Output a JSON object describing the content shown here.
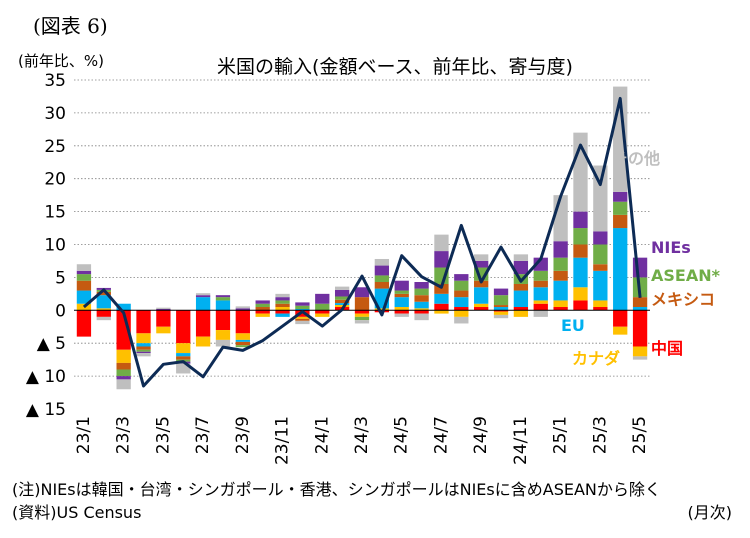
{
  "figure_label": "(図表 6)",
  "unit_label": "(前年比、%)",
  "footer": {
    "note": "(注)NIEsは韓国・台湾・シンガポール・香港、シンガポールはNIEsに含めASEANから除く",
    "source": "(資料)US Census",
    "x_unit": "(月次)"
  },
  "colors": {
    "china": "#ff0000",
    "canada": "#ffc000",
    "eu": "#00b0f0",
    "mexico": "#c55a11",
    "asean": "#70ad47",
    "nies": "#7030a0",
    "other": "#bfbfbf",
    "total_line": "#0d2b55"
  },
  "chart_data": {
    "type": "bar",
    "title": "米国の輸入(金額ベース、前年比、寄与度)",
    "stacked": true,
    "ylim": [
      -15,
      35
    ],
    "yticks": [
      -15,
      -10,
      -5,
      0,
      5,
      10,
      15,
      20,
      25,
      30,
      35
    ],
    "ytick_labels": [
      "▲ 15",
      "▲ 10",
      "▲ 5",
      "0",
      "5",
      "10",
      "15",
      "20",
      "25",
      "30",
      "35"
    ],
    "grid": true,
    "categories": [
      "23/1",
      "23/2",
      "23/3",
      "23/4",
      "23/5",
      "23/6",
      "23/7",
      "23/8",
      "23/9",
      "23/10",
      "23/11",
      "23/12",
      "24/1",
      "24/2",
      "24/3",
      "24/4",
      "24/5",
      "24/6",
      "24/7",
      "24/8",
      "24/9",
      "24/10",
      "24/11",
      "24/12",
      "25/1",
      "25/2",
      "25/3",
      "25/4",
      "25/5"
    ],
    "xtick_labels": [
      "23/1",
      "",
      "23/3",
      "",
      "23/5",
      "",
      "23/7",
      "",
      "23/9",
      "",
      "23/11",
      "",
      "24/1",
      "",
      "24/3",
      "",
      "24/5",
      "",
      "24/7",
      "",
      "24/9",
      "",
      "24/11",
      "",
      "25/1",
      "",
      "25/3",
      "",
      "25/5"
    ],
    "series": [
      {
        "name": "中国",
        "key": "china",
        "values": [
          -4,
          -1,
          -6,
          -3.5,
          -2.5,
          -5,
          -4,
          -3,
          -3.5,
          -0.5,
          -0.5,
          -1,
          -0.5,
          0.5,
          -0.5,
          -0.3,
          -0.5,
          -0.5,
          1,
          0.5,
          0.5,
          -0.2,
          0.5,
          1,
          0.5,
          1.5,
          0.5,
          -2.5,
          -5.5
        ]
      },
      {
        "name": "カナダ",
        "key": "canada",
        "values": [
          1,
          0.3,
          -2,
          -1.5,
          -1,
          -1.5,
          -1.5,
          -1.5,
          -1,
          -0.5,
          0.5,
          -0.3,
          -0.5,
          0.3,
          -0.5,
          0.3,
          0.5,
          0.3,
          -0.5,
          -1,
          0.5,
          -0.5,
          -1,
          0.5,
          1,
          2,
          1,
          -1.2,
          -1.5
        ]
      },
      {
        "name": "EU",
        "key": "eu",
        "values": [
          2,
          2,
          1,
          -0.5,
          0,
          -0.5,
          2,
          1.5,
          -0.3,
          0,
          -0.5,
          0.2,
          0,
          0.3,
          0,
          3,
          1.5,
          1,
          1.5,
          1.5,
          2.5,
          0.5,
          2.5,
          2,
          3,
          4.5,
          4.5,
          12.5,
          0.5
        ]
      },
      {
        "name": "メキシコ",
        "key": "mexico",
        "values": [
          1.5,
          0.5,
          -1,
          -0.5,
          0,
          -0.5,
          0,
          0,
          -0.5,
          0.5,
          0.5,
          -0.3,
          0,
          0.5,
          2,
          1,
          0.5,
          1,
          1.5,
          1,
          1,
          0.3,
          1,
          1,
          1.5,
          2,
          1,
          2,
          1.5
        ]
      },
      {
        "name": "ASEAN*",
        "key": "asean",
        "values": [
          1,
          0.3,
          -1,
          -0.3,
          0,
          -0.3,
          0,
          0.5,
          -0.3,
          0.5,
          0.5,
          0.5,
          1,
          0.5,
          -0.5,
          1,
          0.5,
          1,
          2.5,
          1.5,
          2,
          1.5,
          1.5,
          1.5,
          2,
          2.5,
          3,
          2,
          3
        ]
      },
      {
        "name": "NIEs",
        "key": "nies",
        "values": [
          0.5,
          0.3,
          -0.5,
          -0.2,
          0.2,
          -0.3,
          0.3,
          0.3,
          0.3,
          0.5,
          0.5,
          0.5,
          1.5,
          1,
          1.5,
          1.5,
          1.5,
          1,
          2.5,
          1,
          1,
          1,
          2,
          2,
          2.5,
          2.5,
          2,
          1.5,
          3
        ]
      },
      {
        "name": "その他",
        "key": "other",
        "values": [
          1,
          -0.5,
          -1.5,
          -0.5,
          0.2,
          -1.5,
          0.3,
          -1,
          0.3,
          0,
          0.5,
          -0.5,
          0,
          0.5,
          -0.5,
          1,
          -0.5,
          -1,
          2.5,
          -1,
          1,
          -0.5,
          1,
          -1,
          7,
          12,
          10,
          16,
          -0.5
        ]
      }
    ],
    "total_line": {
      "name": "合計",
      "values": [
        0.5,
        3.1,
        -0.4,
        -11.5,
        -8.2,
        -7.8,
        -10.1,
        -5.6,
        -6.1,
        -4.6,
        -2.4,
        -0.2,
        -2.4,
        0.1,
        5.2,
        -0.7,
        8.3,
        5.1,
        3.5,
        12.9,
        4.3,
        9.6,
        4.4,
        7.8,
        17.3,
        25.1,
        19.1,
        32.2,
        1.9
      ]
    },
    "series_labels": [
      {
        "key": "other",
        "text": "その他"
      },
      {
        "key": "nies",
        "text": "NIEs"
      },
      {
        "key": "asean",
        "text": "ASEAN*"
      },
      {
        "key": "mexico",
        "text": "メキシコ"
      },
      {
        "key": "eu",
        "text": "EU"
      },
      {
        "key": "china",
        "text": "中国"
      },
      {
        "key": "canada",
        "text": "カナダ"
      }
    ]
  }
}
